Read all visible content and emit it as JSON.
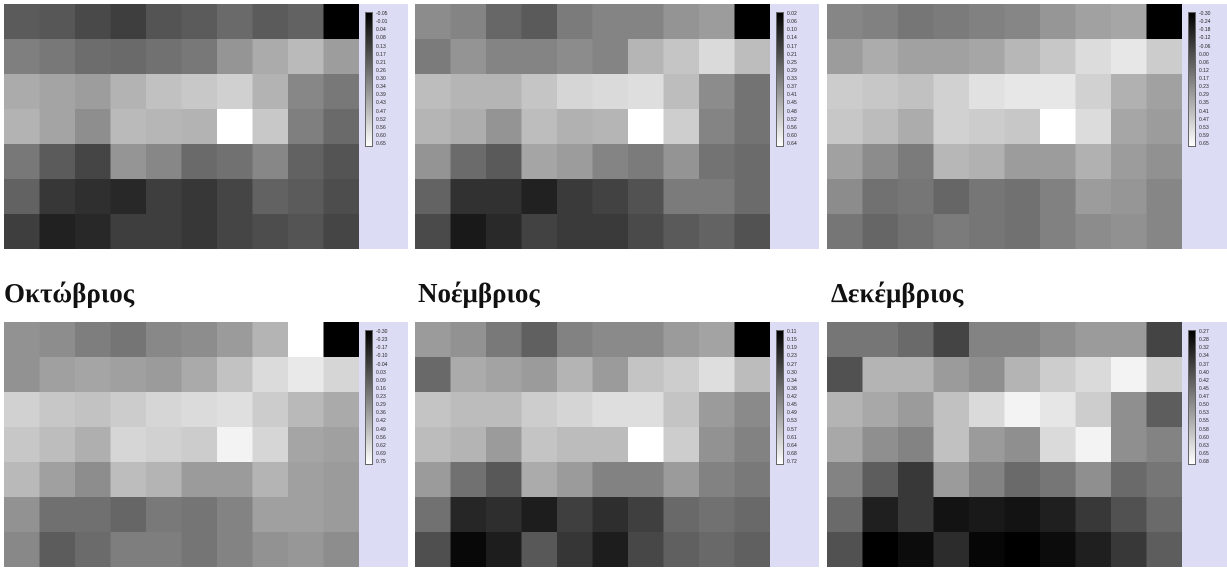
{
  "panels": [
    {
      "title": "",
      "legend": [
        "-0.05",
        "-0.01",
        "0.04",
        "0.08",
        "0.13",
        "0.17",
        "0.21",
        "0.26",
        "0.30",
        "0.34",
        "0.39",
        "0.43",
        "0.47",
        "0.52",
        "0.56",
        "0.60",
        "0.65"
      ]
    },
    {
      "title": "",
      "legend": [
        "0.02",
        "0.06",
        "0.10",
        "0.14",
        "0.17",
        "0.21",
        "0.25",
        "0.29",
        "0.33",
        "0.37",
        "0.41",
        "0.45",
        "0.48",
        "0.52",
        "0.56",
        "0.60",
        "0.64"
      ]
    },
    {
      "title": "",
      "legend": [
        "-0.30",
        "-0.24",
        "-0.18",
        "-0.12",
        "-0.06",
        "0.00",
        "0.06",
        "0.12",
        "0.17",
        "0.23",
        "0.29",
        "0.35",
        "0.41",
        "0.47",
        "0.53",
        "0.59",
        "0.65"
      ]
    },
    {
      "title": "Οκτώβριος",
      "legend": [
        "-0.30",
        "-0.23",
        "-0.17",
        "-0.10",
        "-0.04",
        "0.03",
        "0.09",
        "0.16",
        "0.23",
        "0.29",
        "0.36",
        "0.42",
        "0.49",
        "0.56",
        "0.62",
        "0.69",
        "0.75"
      ]
    },
    {
      "title": "Νοέμβριος",
      "legend": [
        "0.11",
        "0.15",
        "0.19",
        "0.23",
        "0.27",
        "0.30",
        "0.34",
        "0.38",
        "0.42",
        "0.45",
        "0.49",
        "0.53",
        "0.57",
        "0.61",
        "0.64",
        "0.68",
        "0.72"
      ]
    },
    {
      "title": "Δεκέμβριος",
      "legend": [
        "0.27",
        "0.28",
        "0.32",
        "0.34",
        "0.37",
        "0.40",
        "0.42",
        "0.45",
        "0.47",
        "0.50",
        "0.53",
        "0.55",
        "0.58",
        "0.60",
        "0.63",
        "0.65",
        "0.68"
      ]
    }
  ],
  "chart_data": [
    {
      "type": "heatmap",
      "title": "",
      "colorscale": "black-to-white",
      "values": [
        [
          0.2,
          0.19,
          0.15,
          0.12,
          0.18,
          0.2,
          0.24,
          0.2,
          0.22,
          -0.05
        ],
        [
          0.3,
          0.28,
          0.25,
          0.24,
          0.26,
          0.28,
          0.36,
          0.42,
          0.46,
          0.38
        ],
        [
          0.42,
          0.4,
          0.38,
          0.44,
          0.48,
          0.5,
          0.52,
          0.44,
          0.32,
          0.28
        ],
        [
          0.44,
          0.4,
          0.34,
          0.46,
          0.45,
          0.44,
          0.65,
          0.5,
          0.3,
          0.24
        ],
        [
          0.28,
          0.2,
          0.14,
          0.36,
          0.32,
          0.24,
          0.26,
          0.32,
          0.22,
          0.18
        ],
        [
          0.22,
          0.1,
          0.08,
          0.06,
          0.12,
          0.1,
          0.14,
          0.22,
          0.2,
          0.16
        ],
        [
          0.12,
          0.04,
          0.06,
          0.12,
          0.12,
          0.1,
          0.14,
          0.16,
          0.18,
          0.14
        ]
      ],
      "legend_ticks": [
        -0.05,
        -0.01,
        0.04,
        0.08,
        0.13,
        0.17,
        0.21,
        0.26,
        0.3,
        0.34,
        0.39,
        0.43,
        0.47,
        0.52,
        0.56,
        0.6,
        0.65
      ]
    },
    {
      "type": "heatmap",
      "title": "",
      "colorscale": "black-to-white",
      "values": [
        [
          0.36,
          0.34,
          0.27,
          0.24,
          0.32,
          0.34,
          0.34,
          0.38,
          0.4,
          0.02
        ],
        [
          0.32,
          0.38,
          0.34,
          0.34,
          0.36,
          0.34,
          0.46,
          0.5,
          0.55,
          0.48
        ],
        [
          0.48,
          0.46,
          0.46,
          0.5,
          0.54,
          0.55,
          0.56,
          0.48,
          0.36,
          0.3
        ],
        [
          0.46,
          0.44,
          0.38,
          0.48,
          0.45,
          0.46,
          0.64,
          0.52,
          0.34,
          0.3
        ],
        [
          0.38,
          0.28,
          0.24,
          0.42,
          0.4,
          0.34,
          0.32,
          0.38,
          0.3,
          0.28
        ],
        [
          0.26,
          0.14,
          0.14,
          0.1,
          0.16,
          0.18,
          0.22,
          0.32,
          0.32,
          0.28
        ],
        [
          0.2,
          0.08,
          0.12,
          0.18,
          0.16,
          0.16,
          0.2,
          0.24,
          0.26,
          0.22
        ]
      ],
      "legend_ticks": [
        0.02,
        0.06,
        0.1,
        0.14,
        0.17,
        0.21,
        0.25,
        0.29,
        0.33,
        0.37,
        0.41,
        0.45,
        0.48,
        0.52,
        0.56,
        0.6,
        0.64
      ]
    },
    {
      "type": "heatmap",
      "title": "",
      "colorscale": "black-to-white",
      "values": [
        [
          0.2,
          0.18,
          0.14,
          0.16,
          0.18,
          0.2,
          0.26,
          0.3,
          0.32,
          -0.3
        ],
        [
          0.28,
          0.34,
          0.3,
          0.3,
          0.32,
          0.38,
          0.44,
          0.52,
          0.56,
          0.46
        ],
        [
          0.46,
          0.44,
          0.42,
          0.48,
          0.54,
          0.56,
          0.56,
          0.48,
          0.36,
          0.3
        ],
        [
          0.44,
          0.4,
          0.34,
          0.48,
          0.46,
          0.44,
          0.65,
          0.52,
          0.32,
          0.28
        ],
        [
          0.3,
          0.22,
          0.16,
          0.38,
          0.36,
          0.28,
          0.28,
          0.36,
          0.28,
          0.24
        ],
        [
          0.22,
          0.12,
          0.14,
          0.08,
          0.14,
          0.12,
          0.18,
          0.28,
          0.26,
          0.2
        ],
        [
          0.14,
          0.08,
          0.12,
          0.16,
          0.14,
          0.12,
          0.18,
          0.22,
          0.24,
          0.2
        ]
      ],
      "legend_ticks": [
        -0.3,
        -0.24,
        -0.18,
        -0.12,
        -0.06,
        0.0,
        0.06,
        0.12,
        0.17,
        0.23,
        0.29,
        0.35,
        0.41,
        0.47,
        0.53,
        0.59,
        0.65
      ]
    },
    {
      "type": "heatmap",
      "title": "Οκτώβριος",
      "colorscale": "black-to-white",
      "values": [
        [
          0.3,
          0.28,
          0.22,
          0.18,
          0.26,
          0.28,
          0.34,
          0.44,
          0.75,
          -0.3
        ],
        [
          0.3,
          0.36,
          0.38,
          0.36,
          0.34,
          0.4,
          0.5,
          0.6,
          0.66,
          0.58
        ],
        [
          0.56,
          0.52,
          0.5,
          0.54,
          0.58,
          0.6,
          0.62,
          0.54,
          0.46,
          0.4
        ],
        [
          0.52,
          0.48,
          0.42,
          0.58,
          0.56,
          0.54,
          0.7,
          0.58,
          0.38,
          0.36
        ],
        [
          0.46,
          0.36,
          0.28,
          0.48,
          0.44,
          0.34,
          0.34,
          0.44,
          0.36,
          0.34
        ],
        [
          0.3,
          0.16,
          0.16,
          0.12,
          0.2,
          0.18,
          0.24,
          0.36,
          0.36,
          0.34
        ],
        [
          0.26,
          0.08,
          0.14,
          0.22,
          0.22,
          0.18,
          0.24,
          0.3,
          0.32,
          0.28
        ]
      ],
      "legend_ticks": [
        -0.3,
        -0.23,
        -0.17,
        -0.1,
        -0.04,
        0.03,
        0.09,
        0.16,
        0.23,
        0.29,
        0.36,
        0.42,
        0.49,
        0.56,
        0.62,
        0.69,
        0.75
      ]
    },
    {
      "type": "heatmap",
      "title": "Νοέμβριος",
      "colorscale": "black-to-white",
      "values": [
        [
          0.48,
          0.46,
          0.4,
          0.34,
          0.42,
          0.44,
          0.44,
          0.48,
          0.5,
          0.11
        ],
        [
          0.36,
          0.52,
          0.5,
          0.48,
          0.54,
          0.48,
          0.58,
          0.6,
          0.64,
          0.56
        ],
        [
          0.58,
          0.56,
          0.56,
          0.6,
          0.62,
          0.64,
          0.64,
          0.58,
          0.48,
          0.44
        ],
        [
          0.56,
          0.54,
          0.48,
          0.58,
          0.56,
          0.56,
          0.72,
          0.6,
          0.46,
          0.42
        ],
        [
          0.48,
          0.38,
          0.32,
          0.52,
          0.48,
          0.42,
          0.42,
          0.48,
          0.42,
          0.4
        ],
        [
          0.38,
          0.2,
          0.22,
          0.18,
          0.26,
          0.22,
          0.26,
          0.36,
          0.38,
          0.36
        ],
        [
          0.3,
          0.13,
          0.18,
          0.32,
          0.24,
          0.18,
          0.28,
          0.34,
          0.36,
          0.34
        ]
      ],
      "legend_ticks": [
        0.11,
        0.15,
        0.19,
        0.23,
        0.27,
        0.3,
        0.34,
        0.38,
        0.42,
        0.45,
        0.49,
        0.53,
        0.57,
        0.61,
        0.64,
        0.68,
        0.72
      ]
    },
    {
      "type": "heatmap",
      "title": "Δεκέμβριος",
      "colorscale": "black-to-white",
      "values": [
        [
          0.46,
          0.46,
          0.44,
          0.38,
          0.48,
          0.48,
          0.5,
          0.52,
          0.52,
          0.38
        ],
        [
          0.4,
          0.56,
          0.56,
          0.52,
          0.5,
          0.56,
          0.6,
          0.62,
          0.66,
          0.6
        ],
        [
          0.56,
          0.54,
          0.52,
          0.58,
          0.62,
          0.66,
          0.64,
          0.6,
          0.5,
          0.42
        ],
        [
          0.54,
          0.5,
          0.48,
          0.58,
          0.52,
          0.5,
          0.62,
          0.66,
          0.5,
          0.48
        ],
        [
          0.48,
          0.42,
          0.36,
          0.52,
          0.48,
          0.44,
          0.46,
          0.5,
          0.44,
          0.46
        ],
        [
          0.44,
          0.32,
          0.36,
          0.3,
          0.31,
          0.3,
          0.32,
          0.36,
          0.4,
          0.44
        ],
        [
          0.4,
          0.27,
          0.29,
          0.34,
          0.28,
          0.27,
          0.29,
          0.32,
          0.36,
          0.42
        ]
      ],
      "legend_ticks": [
        0.27,
        0.28,
        0.32,
        0.34,
        0.37,
        0.4,
        0.42,
        0.45,
        0.47,
        0.5,
        0.53,
        0.55,
        0.58,
        0.6,
        0.63,
        0.65,
        0.68
      ]
    }
  ]
}
